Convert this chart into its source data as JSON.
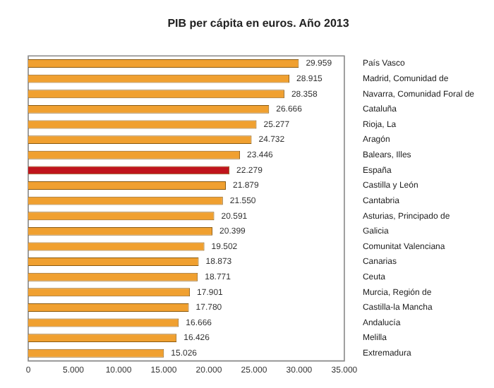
{
  "chart_data": {
    "type": "bar",
    "orientation": "horizontal",
    "title": "PIB per cápita en euros. Año 2013",
    "categories": [
      "País Vasco",
      "Madrid, Comunidad de",
      "Navarra, Comunidad Foral de",
      "Cataluña",
      "Rioja, La",
      "Aragón",
      "Balears, Illes",
      "España",
      "Castilla y León",
      "Cantabria",
      "Asturias, Principado de",
      "Galicia",
      "Comunitat Valenciana",
      "Canarias",
      "Ceuta",
      "Murcia, Región de",
      "Castilla-la Mancha",
      "Andalucía",
      "Melilla",
      "Extremadura"
    ],
    "values": [
      29959,
      28915,
      28358,
      26666,
      25277,
      24732,
      23446,
      22279,
      21879,
      21550,
      20591,
      20399,
      19502,
      18873,
      18771,
      17901,
      17780,
      16666,
      16426,
      15026
    ],
    "value_labels": [
      "29.959",
      "28.915",
      "28.358",
      "26.666",
      "25.277",
      "24.732",
      "23.446",
      "22.279",
      "21.879",
      "21.550",
      "20.591",
      "20.399",
      "19.502",
      "18.873",
      "18.771",
      "17.901",
      "17.780",
      "16.666",
      "16.426",
      "15.026"
    ],
    "colors": [
      "#f0a030",
      "#f0a030",
      "#f0a030",
      "#f0a030",
      "#f0a030",
      "#f0a030",
      "#f0a030",
      "#c0141c",
      "#f0a030",
      "#f0a030",
      "#f0a030",
      "#f0a030",
      "#f0a030",
      "#f0a030",
      "#f0a030",
      "#f0a030",
      "#f0a030",
      "#f0a030",
      "#f0a030",
      "#f0a030"
    ],
    "xlim": [
      0,
      35000
    ],
    "xticks": [
      0,
      {
        "value": 5000,
        "label": "5.000"
      },
      {
        "value": 10000,
        "label": "10.000"
      },
      {
        "value": 15000,
        "label": "15.000"
      },
      {
        "value": 20000,
        "label": "20.000"
      },
      {
        "value": 25000,
        "label": "25.000"
      },
      {
        "value": 30000,
        "label": "30.000"
      },
      {
        "value": 35000,
        "label": "35.000"
      }
    ],
    "grid": false,
    "legend": false
  }
}
